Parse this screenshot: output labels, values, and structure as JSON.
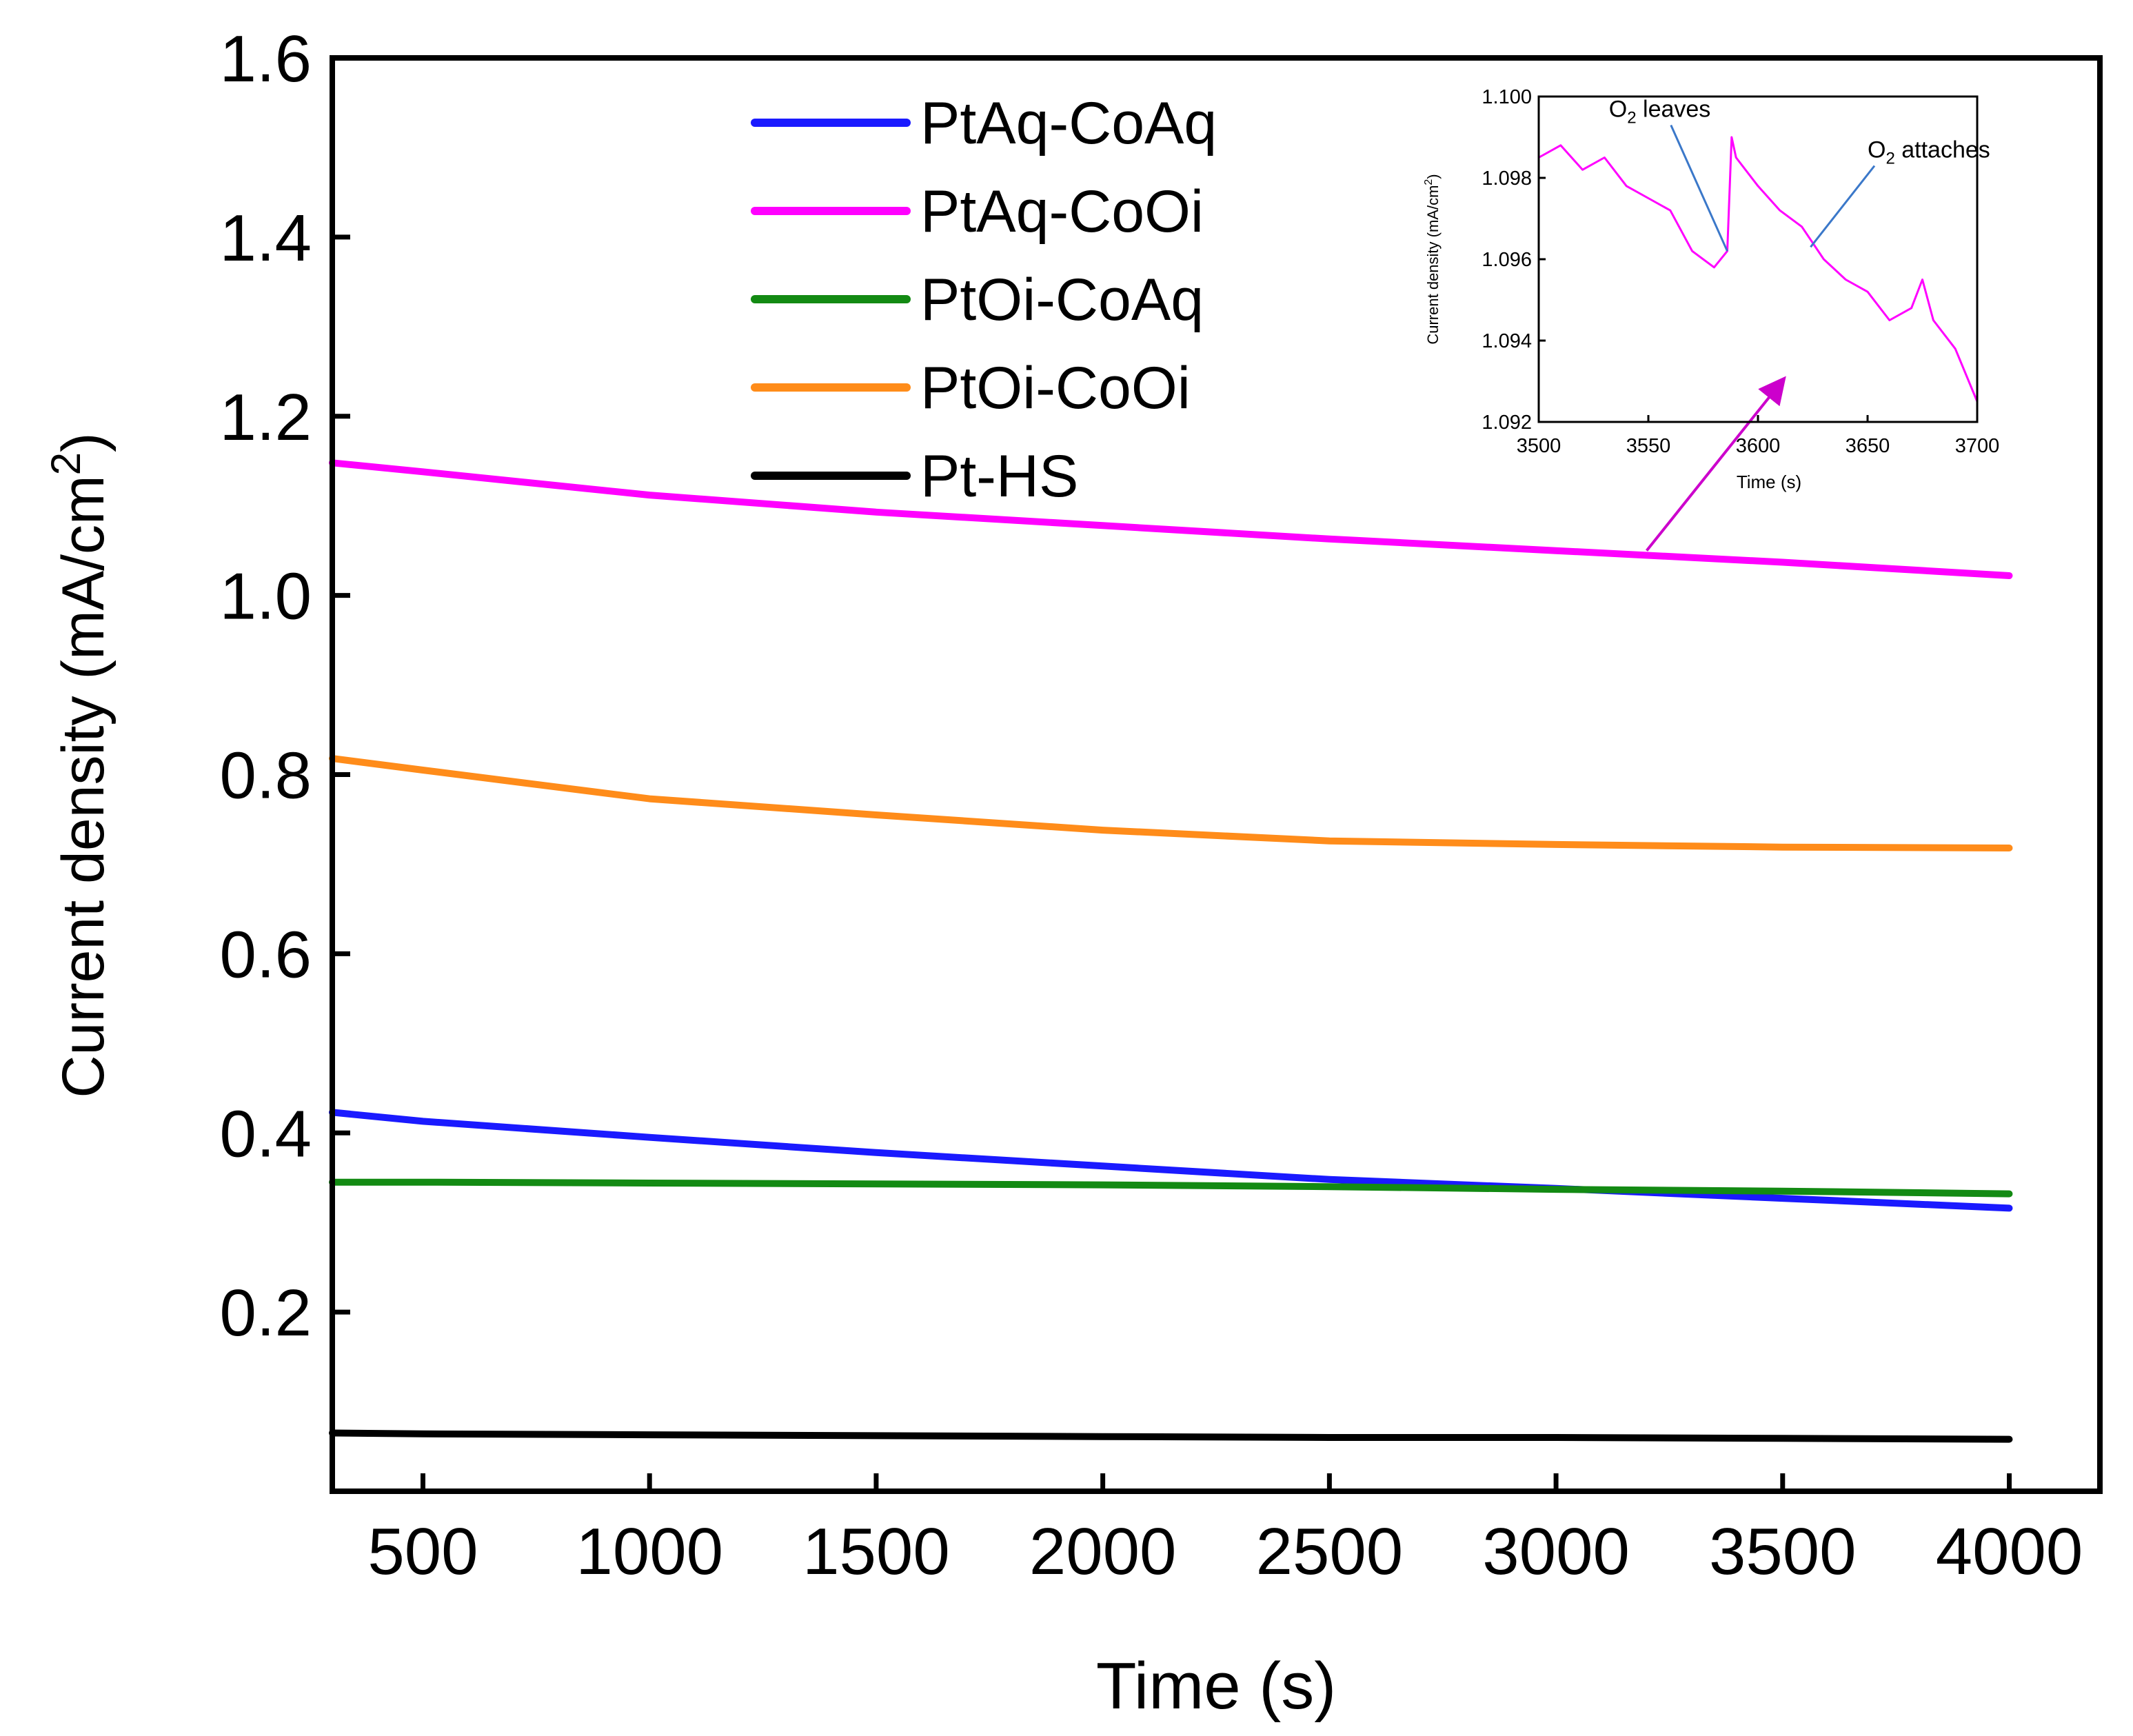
{
  "chart_data": [
    {
      "type": "line",
      "xlabel": "Time (s)",
      "ylabel_main": "Current density (mA/cm",
      "ylabel_sup": "2",
      "ylabel_close": ")",
      "xlim": [
        300,
        4200
      ],
      "ylim": [
        0.0,
        1.6
      ],
      "xticks": [
        500,
        1000,
        1500,
        2000,
        2500,
        3000,
        3500,
        4000
      ],
      "xtick_labels": [
        "500",
        "1000",
        "1500",
        "2000",
        "2500",
        "3000",
        "3500",
        "4000"
      ],
      "yticks": [
        0.2,
        0.4,
        0.6,
        0.8,
        1.0,
        1.2,
        1.4,
        1.6
      ],
      "ytick_labels": [
        "0.2",
        "0.4",
        "0.6",
        "0.8",
        "1.0",
        "1.2",
        "1.4",
        "1.6"
      ],
      "legend_position": "top-center",
      "series": [
        {
          "name": "PtAq-CoAq",
          "color": "#1a1aff",
          "x": [
            300,
            500,
            1000,
            1500,
            2000,
            2500,
            3000,
            3500,
            4000
          ],
          "y": [
            0.423,
            0.413,
            0.395,
            0.378,
            0.363,
            0.348,
            0.338,
            0.327,
            0.316
          ]
        },
        {
          "name": "PtAq-CoOi",
          "color": "#ff00ff",
          "x": [
            300,
            500,
            1000,
            1500,
            2000,
            2500,
            3000,
            3500,
            4000
          ],
          "y": [
            1.148,
            1.138,
            1.112,
            1.093,
            1.078,
            1.063,
            1.05,
            1.037,
            1.022
          ]
        },
        {
          "name": "PtOi-CoAq",
          "color": "#138a13",
          "x": [
            300,
            500,
            1000,
            1500,
            2000,
            2500,
            3000,
            3500,
            4000
          ],
          "y": [
            0.345,
            0.345,
            0.344,
            0.343,
            0.342,
            0.34,
            0.337,
            0.335,
            0.332
          ]
        },
        {
          "name": "PtOi-CoOi",
          "color": "#ff8c1a",
          "x": [
            300,
            500,
            1000,
            1500,
            2000,
            2500,
            3000,
            3500,
            4000
          ],
          "y": [
            0.818,
            0.805,
            0.773,
            0.755,
            0.738,
            0.726,
            0.722,
            0.719,
            0.718
          ]
        },
        {
          "name": "Pt-HS",
          "color": "#000000",
          "x": [
            300,
            500,
            1000,
            1500,
            2000,
            2500,
            3000,
            3500,
            4000
          ],
          "y": [
            0.065,
            0.064,
            0.063,
            0.062,
            0.061,
            0.06,
            0.06,
            0.059,
            0.058
          ]
        }
      ],
      "inset_arrow": {
        "from": {
          "x": 3200,
          "y": 1.05
        },
        "to": {
          "x": 3500,
          "y": 1.24
        },
        "color": "#cc00cc"
      }
    },
    {
      "type": "line",
      "role": "inset",
      "xlabel": "Time (s)",
      "ylabel_main": "Current density (mA/cm",
      "ylabel_sup": "2",
      "ylabel_close": ")",
      "xlim": [
        3500,
        3700
      ],
      "ylim": [
        1.092,
        1.1
      ],
      "xticks": [
        3500,
        3550,
        3600,
        3650,
        3700
      ],
      "xtick_labels": [
        "3500",
        "3550",
        "3600",
        "3650",
        "3700"
      ],
      "yticks": [
        1.092,
        1.094,
        1.096,
        1.098,
        1.1
      ],
      "ytick_labels": [
        "1.092",
        "1.094",
        "1.096",
        "1.098",
        "1.100"
      ],
      "series": [
        {
          "name": "PtAq-CoOi",
          "color": "#ff00ff",
          "x": [
            3500,
            3510,
            3520,
            3530,
            3540,
            3550,
            3560,
            3570,
            3580,
            3586,
            3588,
            3590,
            3600,
            3610,
            3620,
            3630,
            3640,
            3650,
            3660,
            3670,
            3675,
            3680,
            3690,
            3700
          ],
          "y": [
            1.0985,
            1.0988,
            1.0982,
            1.0985,
            1.0978,
            1.0975,
            1.0972,
            1.0962,
            1.0958,
            1.0962,
            1.099,
            1.0985,
            1.0978,
            1.0972,
            1.0968,
            1.096,
            1.0955,
            1.0952,
            1.0945,
            1.0948,
            1.0955,
            1.0945,
            1.0938,
            1.0925
          ]
        }
      ],
      "annotations": [
        {
          "label": "O",
          "sub": "2",
          "rest": " leaves",
          "x": 3532,
          "y": 1.0995,
          "point_x": 3586,
          "point_y": 1.0962
        },
        {
          "label": "O",
          "sub": "2",
          "rest": " attaches",
          "x": 3650,
          "y": 1.0985,
          "point_x": 3624,
          "point_y": 1.0963
        }
      ]
    }
  ]
}
